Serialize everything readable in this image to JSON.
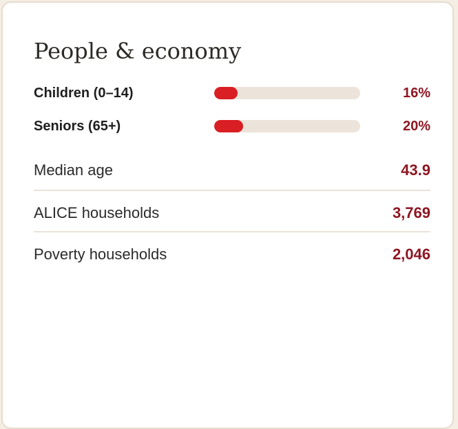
{
  "card": {
    "title": "People & economy"
  },
  "bars": [
    {
      "label": "Children (0–14)",
      "value_text": "16%",
      "fill_fraction": 0.16
    },
    {
      "label": "Seniors (65+)",
      "value_text": "20%",
      "fill_fraction": 0.2
    }
  ],
  "stats": [
    {
      "label": "Median age",
      "value": "43.9"
    },
    {
      "label": "ALICE households",
      "value": "3,769"
    },
    {
      "label": "Poverty households",
      "value": "2,046"
    }
  ],
  "colors": {
    "accent_red": "#d91e24",
    "value_red": "#8e1622",
    "track": "#ece4da",
    "border": "#e6dccc"
  }
}
